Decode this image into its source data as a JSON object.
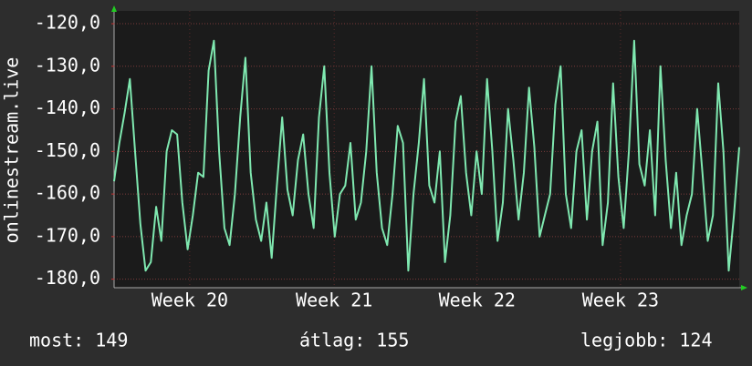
{
  "chart_data": {
    "type": "line",
    "y_axis_label": "onlinestream.live",
    "xlim": [
      0,
      119
    ],
    "xticks": [
      {
        "value": 14.4,
        "label": "Week 20"
      },
      {
        "value": 41.9,
        "label": "Week 21"
      },
      {
        "value": 69.1,
        "label": "Week 22"
      },
      {
        "value": 96.4,
        "label": "Week 23"
      }
    ],
    "ylim": [
      -182,
      -117
    ],
    "yticks": [
      {
        "value": -120,
        "label": "-120,0"
      },
      {
        "value": -130,
        "label": "-130,0"
      },
      {
        "value": -140,
        "label": "-140,0"
      },
      {
        "value": -150,
        "label": "-150,0"
      },
      {
        "value": -160,
        "label": "-160,0"
      },
      {
        "value": -170,
        "label": "-170,0"
      },
      {
        "value": -180,
        "label": "-180,0"
      }
    ],
    "grid": true,
    "color": "#7fe8b0",
    "values": [
      -157,
      -148,
      -141,
      -133,
      -150,
      -167,
      -178,
      -176,
      -163,
      -171,
      -150,
      -145,
      -146,
      -162,
      -173,
      -165,
      -155,
      -156,
      -131,
      -124,
      -150,
      -168,
      -172,
      -160,
      -142,
      -128,
      -155,
      -166,
      -171,
      -162,
      -175,
      -158,
      -142,
      -159,
      -165,
      -152,
      -146,
      -160,
      -168,
      -142,
      -130,
      -155,
      -170,
      -160,
      -158,
      -148,
      -166,
      -162,
      -150,
      -130,
      -155,
      -168,
      -172,
      -160,
      -144,
      -148,
      -178,
      -160,
      -148,
      -133,
      -158,
      -162,
      -150,
      -176,
      -165,
      -143,
      -137,
      -155,
      -165,
      -150,
      -160,
      -133,
      -150,
      -171,
      -162,
      -140,
      -152,
      -166,
      -155,
      -135,
      -149,
      -170,
      -165,
      -160,
      -139,
      -130,
      -160,
      -168,
      -150,
      -145,
      -166,
      -150,
      -143,
      -172,
      -162,
      -134,
      -156,
      -168,
      -150,
      -124,
      -153,
      -158,
      -145,
      -165,
      -130,
      -152,
      -168,
      -155,
      -172,
      -165,
      -160,
      -140,
      -155,
      -171,
      -165,
      -134,
      -150,
      -178,
      -165,
      -149
    ],
    "stats": [
      "most: 149",
      "átlag: 155",
      "legjobb: 124"
    ]
  }
}
